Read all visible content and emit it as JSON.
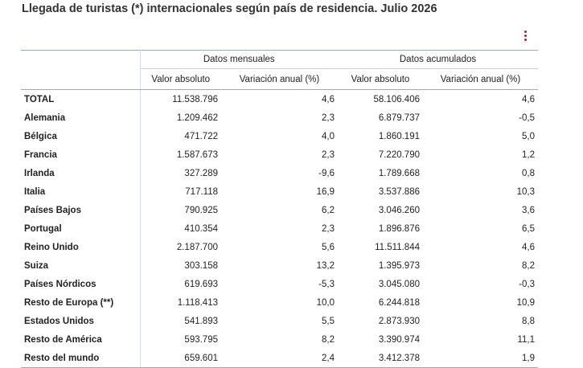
{
  "title": "Llegada de turistas (*) internacionales según país de residencia. Julio 2026",
  "menu_icon": "kebab-menu-icon",
  "accent_color": "#b0232a",
  "table": {
    "group_headers": [
      "Datos mensuales",
      "Datos acumulados"
    ],
    "column_headers": [
      "Valor absoluto",
      "Variación anual (%)",
      "Valor absoluto",
      "Variación anual (%)"
    ],
    "rows": [
      {
        "name": "TOTAL",
        "v1": "11.538.796",
        "v2": "4,6",
        "v3": "58.106.406",
        "v4": "4,6"
      },
      {
        "name": "Alemania",
        "v1": "1.209.462",
        "v2": "2,3",
        "v3": "6.879.737",
        "v4": "-0,5"
      },
      {
        "name": "Bélgica",
        "v1": "471.722",
        "v2": "4,0",
        "v3": "1.860.191",
        "v4": "5,0"
      },
      {
        "name": "Francia",
        "v1": "1.587.673",
        "v2": "2,3",
        "v3": "7.220.790",
        "v4": "1,2"
      },
      {
        "name": "Irlanda",
        "v1": "327.289",
        "v2": "-9,6",
        "v3": "1.789.668",
        "v4": "0,8"
      },
      {
        "name": "Italia",
        "v1": "717.118",
        "v2": "16,9",
        "v3": "3.537.886",
        "v4": "10,3"
      },
      {
        "name": "Países Bajos",
        "v1": "790.925",
        "v2": "6,2",
        "v3": "3.046.260",
        "v4": "3,6"
      },
      {
        "name": "Portugal",
        "v1": "410.354",
        "v2": "2,3",
        "v3": "1.896.876",
        "v4": "6,5"
      },
      {
        "name": "Reino Unido",
        "v1": "2.187.700",
        "v2": "5,6",
        "v3": "11.511.844",
        "v4": "4,6"
      },
      {
        "name": "Suiza",
        "v1": "303.158",
        "v2": "13,2",
        "v3": "1.395.973",
        "v4": "8,2"
      },
      {
        "name": "Países Nórdicos",
        "v1": "619.693",
        "v2": "-5,3",
        "v3": "3.045.080",
        "v4": "-0,3"
      },
      {
        "name": "Resto de Europa (**)",
        "v1": "1.118.413",
        "v2": "10,0",
        "v3": "6.244.818",
        "v4": "10,9"
      },
      {
        "name": "Estados Unidos",
        "v1": "541.893",
        "v2": "5,5",
        "v3": "2.873.930",
        "v4": "8,8"
      },
      {
        "name": "Resto de América",
        "v1": "593.795",
        "v2": "8,2",
        "v3": "3.390.974",
        "v4": "11,1"
      },
      {
        "name": "Resto del mundo",
        "v1": "659.601",
        "v2": "2,4",
        "v3": "3.412.378",
        "v4": "1,9"
      }
    ]
  }
}
